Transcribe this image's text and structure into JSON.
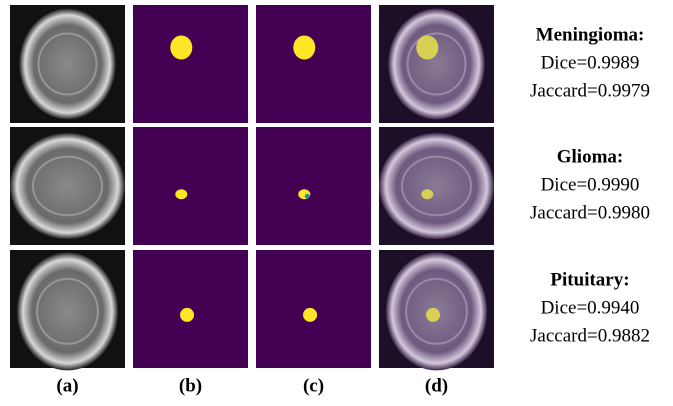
{
  "rows": [
    {
      "label": "Meningioma:",
      "dice": "Dice=0.9989",
      "jaccard": "Jaccard=0.9979"
    },
    {
      "label": "Glioma:",
      "dice": "Dice=0.9990",
      "jaccard": "Jaccard=0.9980"
    },
    {
      "label": "Pituitary:",
      "dice": "Dice=0.9940",
      "jaccard": "Jaccard=0.9882"
    }
  ],
  "columns": [
    "(a)",
    "(b)",
    "(c)",
    "(d)"
  ]
}
